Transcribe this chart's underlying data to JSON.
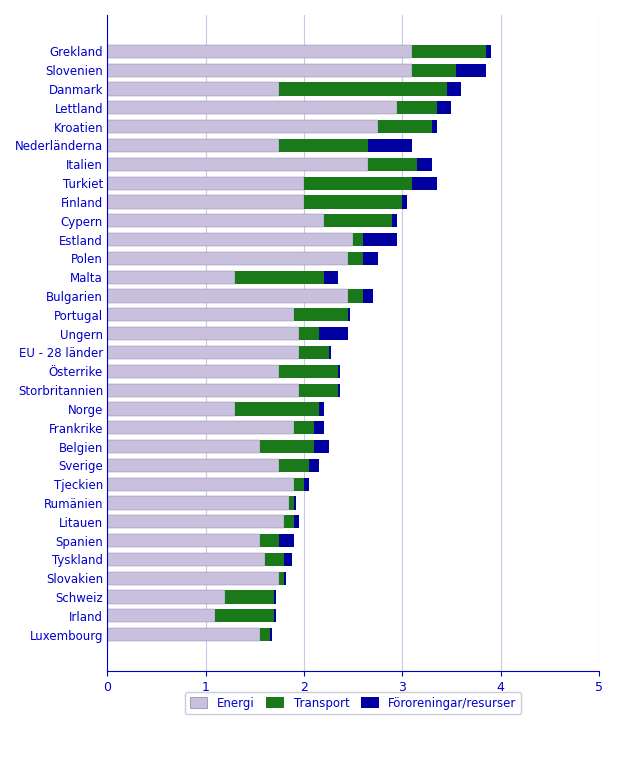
{
  "countries": [
    "Grekland",
    "Slovenien",
    "Danmark",
    "Lettland",
    "Kroatien",
    "Nederländerna",
    "Italien",
    "Turkiet",
    "Finland",
    "Cypern",
    "Estland",
    "Polen",
    "Malta",
    "Bulgarien",
    "Portugal",
    "Ungern",
    "EU - 28 länder",
    "Österrike",
    "Storbritannien",
    "Norge",
    "Frankrike",
    "Belgien",
    "Sverige",
    "Tjeckien",
    "Rumänien",
    "Litauen",
    "Spanien",
    "Tyskland",
    "Slovakien",
    "Schweiz",
    "Irland",
    "Luxembourg"
  ],
  "energi": [
    3.1,
    3.1,
    1.75,
    2.95,
    2.75,
    1.75,
    2.65,
    2.0,
    2.0,
    2.2,
    2.5,
    2.45,
    1.3,
    2.45,
    1.9,
    1.95,
    1.95,
    1.75,
    1.95,
    1.3,
    1.9,
    1.55,
    1.75,
    1.9,
    1.85,
    1.8,
    1.55,
    1.6,
    1.75,
    1.2,
    1.1,
    1.55
  ],
  "transport": [
    0.75,
    0.45,
    1.7,
    0.4,
    0.55,
    0.9,
    0.5,
    1.1,
    1.0,
    0.7,
    0.1,
    0.15,
    0.9,
    0.15,
    0.55,
    0.2,
    0.3,
    0.6,
    0.4,
    0.85,
    0.2,
    0.55,
    0.3,
    0.1,
    0.05,
    0.1,
    0.2,
    0.2,
    0.05,
    0.5,
    0.6,
    0.1
  ],
  "fororeningar": [
    0.05,
    0.3,
    0.15,
    0.15,
    0.05,
    0.45,
    0.15,
    0.25,
    0.05,
    0.05,
    0.35,
    0.15,
    0.15,
    0.1,
    0.02,
    0.3,
    0.02,
    0.02,
    0.02,
    0.05,
    0.1,
    0.15,
    0.1,
    0.05,
    0.02,
    0.05,
    0.15,
    0.08,
    0.02,
    0.02,
    0.02,
    0.02
  ],
  "color_energi": "#c8c0dc",
  "color_transport": "#1a7a1a",
  "color_fororeningar": "#0000a0",
  "legend_labels": [
    "Energi",
    "Transport",
    "Föroreningar/resurser"
  ],
  "xlim": [
    0,
    5
  ],
  "xticks": [
    0,
    1,
    2,
    3,
    4,
    5
  ],
  "bar_height": 0.7
}
